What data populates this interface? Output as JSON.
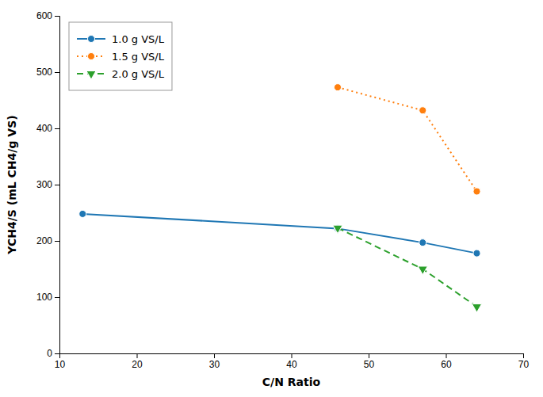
{
  "chart_data": {
    "type": "line",
    "xlabel": "C/N Ratio",
    "ylabel": "YCH4/S (mL CH4/g VS)",
    "series": [
      {
        "name": "1.0 g VS/L",
        "x": [
          13,
          46,
          57,
          64
        ],
        "values": [
          248,
          222,
          197,
          178
        ],
        "line_style": "solid",
        "marker": "circle"
      },
      {
        "name": "1.5 g VS/L",
        "x": [
          46,
          57,
          64
        ],
        "values": [
          473,
          432,
          288
        ],
        "line_style": "dotted",
        "marker": "circle"
      },
      {
        "name": "2.0 g VS/L",
        "x": [
          46,
          57,
          64
        ],
        "values": [
          223,
          150,
          83
        ],
        "line_style": "dashed",
        "marker": "triangle-down"
      }
    ],
    "xlim": [
      10,
      70
    ],
    "ylim": [
      0,
      600
    ],
    "xticks": [
      10,
      20,
      30,
      40,
      50,
      60,
      70
    ],
    "yticks": [
      0,
      100,
      200,
      300,
      400,
      500,
      600
    ],
    "grid": false,
    "legend": "upper left"
  }
}
